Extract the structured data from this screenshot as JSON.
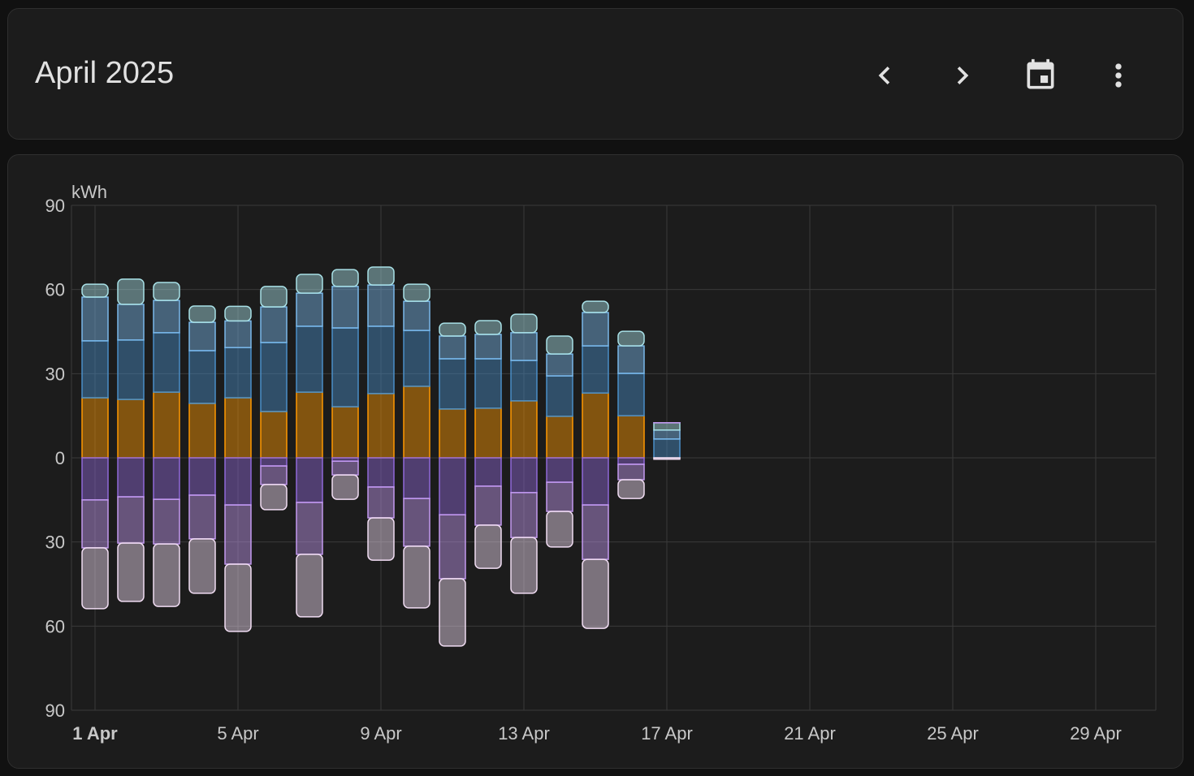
{
  "header": {
    "title": "April 2025"
  },
  "chart_data": {
    "type": "bar",
    "stacked": true,
    "ylabel": "kWh",
    "categories": [
      "1 Apr",
      null,
      null,
      null,
      "5 Apr",
      null,
      null,
      null,
      "9 Apr",
      null,
      null,
      null,
      "13 Apr",
      null,
      null,
      null,
      "17 Apr",
      null,
      null,
      null,
      "21 Apr",
      null,
      null,
      null,
      "25 Apr",
      null,
      null,
      null,
      "29 Apr",
      null
    ],
    "ylim": [
      -90,
      90
    ],
    "yticks": [
      {
        "value": -90,
        "label": "90"
      },
      {
        "value": -60,
        "label": "60"
      },
      {
        "value": -30,
        "label": "30"
      },
      0,
      30,
      60,
      90
    ],
    "grid": true,
    "series": [
      {
        "color": "#ff9800",
        "values": [
          21.4,
          20.8,
          23.4,
          19.4,
          21.4,
          16.5,
          23.4,
          18.2,
          22.9,
          25.5,
          17.4,
          17.7,
          20.3,
          14.8,
          23.1,
          15.0,
          0,
          null,
          null,
          null,
          null,
          null,
          null,
          null,
          null,
          null,
          null,
          null,
          null,
          null
        ]
      },
      {
        "color": "#4a8fc8",
        "values": [
          20.3,
          21.2,
          21.2,
          18.8,
          17.9,
          24.6,
          23.5,
          28.1,
          24.0,
          19.9,
          17.9,
          17.6,
          14.4,
          14.4,
          16.8,
          15.1,
          6.7,
          null,
          null,
          null,
          null,
          null,
          null,
          null,
          null,
          null,
          null,
          null,
          null,
          null
        ]
      },
      {
        "color": "#7ab8ea",
        "values": [
          15.6,
          12.7,
          11.5,
          10.1,
          9.5,
          12.7,
          11.8,
          14.8,
          14.7,
          10.4,
          8.1,
          8.7,
          9.9,
          7.8,
          11.9,
          9.8,
          3.2,
          null,
          null,
          null,
          null,
          null,
          null,
          null,
          null,
          null,
          null,
          null,
          null,
          null
        ]
      },
      {
        "color": "#a8e0e6",
        "values": [
          4.6,
          9.0,
          6.4,
          5.8,
          5.2,
          7.3,
          6.7,
          6.0,
          6.4,
          6.1,
          4.6,
          4.9,
          6.6,
          6.4,
          4.0,
          5.2,
          2.6,
          null,
          null,
          null,
          null,
          null,
          null,
          null,
          null,
          null,
          null,
          null,
          null,
          null
        ]
      },
      {
        "color": "#9068d8",
        "values": [
          -15.0,
          -13.9,
          -14.8,
          -13.3,
          -16.8,
          -2.9,
          -15.9,
          -1.2,
          -10.4,
          -14.5,
          -20.3,
          -10.1,
          -12.4,
          -8.7,
          -16.8,
          -2.3,
          0,
          null,
          null,
          null,
          null,
          null,
          null,
          null,
          null,
          null,
          null,
          null,
          null,
          null
        ]
      },
      {
        "color": "#c39af0",
        "values": [
          -17.1,
          -16.5,
          -15.9,
          -15.6,
          -21.1,
          -6.6,
          -18.5,
          -4.9,
          -11.0,
          -17.0,
          -22.8,
          -13.9,
          -16.0,
          -10.4,
          -19.4,
          -5.5,
          0,
          null,
          null,
          null,
          null,
          null,
          null,
          null,
          null,
          null,
          null,
          null,
          null,
          null
        ]
      },
      {
        "color": "#f0dcf2",
        "values": [
          -21.7,
          -20.8,
          -22.3,
          -19.4,
          -24.0,
          -9.0,
          -22.3,
          -8.7,
          -15.1,
          -22.0,
          -24.0,
          -15.4,
          -19.9,
          -12.7,
          -24.6,
          -6.7,
          -0.5,
          null,
          null,
          null,
          null,
          null,
          null,
          null,
          null,
          null,
          null,
          null,
          null,
          null
        ]
      }
    ]
  }
}
